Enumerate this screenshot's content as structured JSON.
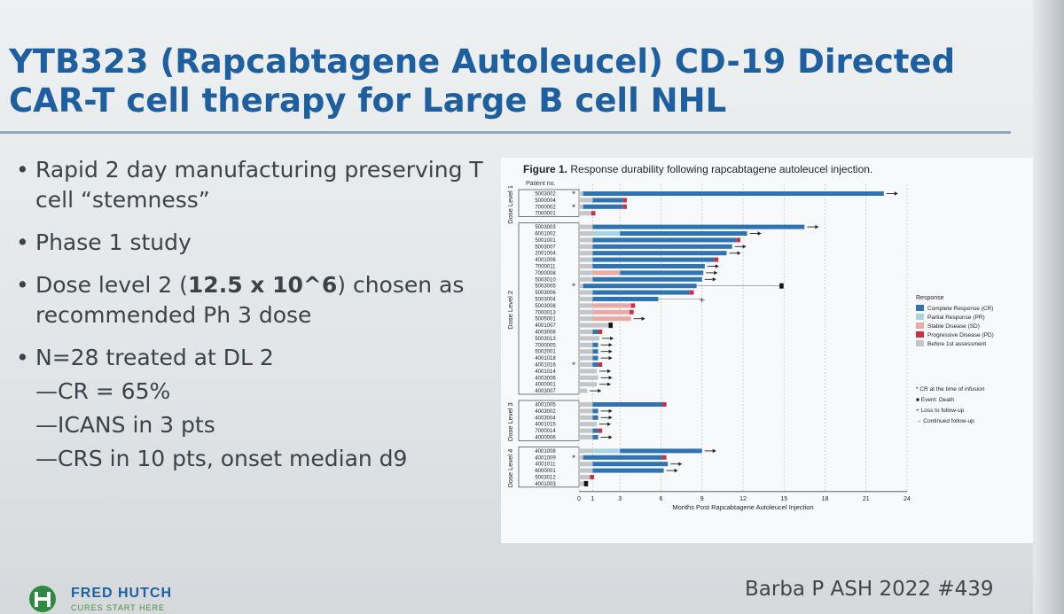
{
  "slide": {
    "title_line1": "YTB323 (Rapcabtagene Autoleucel) CD-19 Directed",
    "title_line2": "CAR-T cell therapy for Large B cell NHL",
    "bullets": [
      {
        "text": "Rapid 2 day manufacturing preserving T cell “stemness”"
      },
      {
        "text": "Phase 1 study"
      },
      {
        "pre": "Dose level 2 (",
        "bold": "12.5 x 10^6",
        "post": ") chosen as recommended Ph 3 dose"
      },
      {
        "text": "N=28 treated at DL 2"
      }
    ],
    "sub_bullets": [
      "—CR = 65%",
      "—ICANS in 3 pts",
      "—CRS in 10 pts, onset median d9"
    ],
    "logo_name": "FRED HUTCH",
    "logo_tagline": "CURES START HERE",
    "citation": "Barba P ASH 2022 #439"
  },
  "chart_data": {
    "type": "bar",
    "caption_bold": "Figure 1.",
    "caption": "Response durability following rapcabtagene autoleucel injection.",
    "patient_header": "Patient no.",
    "xlabel": "Months Post Rapcabtagene Autoleucel Injection",
    "xticks": [
      0,
      1,
      3,
      6,
      9,
      12,
      15,
      18,
      21,
      24
    ],
    "xlim": [
      0,
      24
    ],
    "legend_title": "Response",
    "legend": [
      {
        "name": "Complete Response (CR)",
        "color": "#2f74b0"
      },
      {
        "name": "Partial Response (PR)",
        "color": "#a9d3e2"
      },
      {
        "name": "Stable Disease (SD)",
        "color": "#e9a9a4"
      },
      {
        "name": "Progressive Disease (PD)",
        "color": "#c9314a"
      },
      {
        "name": "Before 1st assessment",
        "color": "#c3c6c9"
      }
    ],
    "symbols": [
      "* CR at the time of infusion",
      "■ Event: Death",
      "+ Loss to follow-up",
      "→ Continued follow-up"
    ],
    "groups": [
      {
        "name": "Dose Level 1",
        "patients": [
          {
            "id": "5003002",
            "star": true,
            "segs": [
              [
                "before",
                0,
                0.3
              ],
              [
                "CR",
                0.3,
                22.3
              ]
            ],
            "arrow": true
          },
          {
            "id": "5000004",
            "segs": [
              [
                "before",
                0,
                1.0
              ],
              [
                "CR",
                1.0,
                3.2
              ],
              [
                "PD",
                3.2,
                3.5
              ]
            ]
          },
          {
            "id": "7000002",
            "star": true,
            "segs": [
              [
                "before",
                0,
                0.3
              ],
              [
                "CR",
                0.3,
                3.2
              ],
              [
                "PD",
                3.2,
                3.5
              ]
            ]
          },
          {
            "id": "7000001",
            "segs": [
              [
                "before",
                0,
                0.9
              ],
              [
                "PD",
                0.9,
                1.2
              ]
            ]
          }
        ]
      },
      {
        "name": "Dose Level 2",
        "patients": [
          {
            "id": "5003003",
            "segs": [
              [
                "before",
                0,
                1.0
              ],
              [
                "CR",
                1.0,
                16.5
              ]
            ],
            "arrow": true
          },
          {
            "id": "6001002",
            "segs": [
              [
                "before",
                0,
                1.0
              ],
              [
                "PR",
                1.0,
                3.0
              ],
              [
                "CR",
                3.0,
                12.3
              ]
            ],
            "arrow": true
          },
          {
            "id": "5001001",
            "segs": [
              [
                "before",
                0,
                1.0
              ],
              [
                "CR",
                1.0,
                11.5
              ],
              [
                "PD",
                11.5,
                11.8
              ]
            ]
          },
          {
            "id": "5003007",
            "segs": [
              [
                "before",
                0,
                1.0
              ],
              [
                "CR",
                1.0,
                11.2
              ]
            ],
            "arrow": true
          },
          {
            "id": "2001004",
            "segs": [
              [
                "before",
                0,
                1.0
              ],
              [
                "CR",
                1.0,
                10.8
              ]
            ],
            "arrow": true
          },
          {
            "id": "4001006",
            "segs": [
              [
                "before",
                0,
                1.0
              ],
              [
                "CR",
                1.0,
                9.9
              ],
              [
                "PD",
                9.9,
                10.2
              ]
            ]
          },
          {
            "id": "7000011",
            "segs": [
              [
                "before",
                0,
                1.0
              ],
              [
                "CR",
                1.0,
                9.2
              ]
            ],
            "arrow": true
          },
          {
            "id": "7000008",
            "segs": [
              [
                "before",
                0,
                1.0
              ],
              [
                "SD",
                1.0,
                3.0
              ],
              [
                "CR",
                3.0,
                9.1
              ]
            ],
            "arrow": true
          },
          {
            "id": "5003010",
            "segs": [
              [
                "before",
                0,
                1.0
              ],
              [
                "CR",
                1.0,
                9.0
              ]
            ],
            "arrow": true
          },
          {
            "id": "5003005",
            "star": true,
            "segs": [
              [
                "before",
                0,
                0.3
              ],
              [
                "CR",
                0.3,
                8.6
              ]
            ],
            "line_to": 14.8,
            "death": 14.8
          },
          {
            "id": "5003006",
            "segs": [
              [
                "before",
                0,
                1.0
              ],
              [
                "CR",
                1.0,
                8.1
              ],
              [
                "PD",
                8.1,
                8.4
              ]
            ]
          },
          {
            "id": "5003004",
            "segs": [
              [
                "before",
                0,
                1.0
              ],
              [
                "CR",
                1.0,
                5.8
              ]
            ],
            "line_to": 9.0,
            "loss": 9.0
          },
          {
            "id": "5003008",
            "segs": [
              [
                "before",
                0,
                1.0
              ],
              [
                "SD",
                1.0,
                3.8
              ],
              [
                "PD",
                3.8,
                4.1
              ]
            ]
          },
          {
            "id": "7000013",
            "segs": [
              [
                "before",
                0,
                1.0
              ],
              [
                "SD",
                1.0,
                3.7
              ],
              [
                "PD",
                3.7,
                4.0
              ]
            ]
          },
          {
            "id": "5005001",
            "segs": [
              [
                "before",
                0,
                1.0
              ],
              [
                "SD",
                1.0,
                3.8
              ]
            ],
            "arrow": true
          },
          {
            "id": "4001007",
            "segs": [
              [
                "before",
                0,
                2.2
              ]
            ],
            "death": 2.3
          },
          {
            "id": "4003008",
            "segs": [
              [
                "before",
                0,
                1.0
              ],
              [
                "CR",
                1.0,
                1.4
              ],
              [
                "PD",
                1.4,
                1.7
              ]
            ]
          },
          {
            "id": "5003013",
            "segs": [
              [
                "before",
                0,
                1.5
              ]
            ],
            "arrow": true
          },
          {
            "id": "7000005",
            "segs": [
              [
                "before",
                0,
                1.0
              ],
              [
                "CR",
                1.0,
                1.4
              ]
            ],
            "arrow": true
          },
          {
            "id": "5002001",
            "segs": [
              [
                "before",
                0,
                1.0
              ],
              [
                "CR",
                1.0,
                1.4
              ]
            ],
            "arrow": true
          },
          {
            "id": "4001018",
            "segs": [
              [
                "before",
                0,
                1.0
              ],
              [
                "CR",
                1.0,
                1.4
              ]
            ],
            "arrow": true
          },
          {
            "id": "4001016",
            "star": true,
            "segs": [
              [
                "before",
                0,
                1.0
              ],
              [
                "CR",
                1.0,
                1.4
              ],
              [
                "PD",
                1.4,
                1.7
              ]
            ]
          },
          {
            "id": "4001014",
            "segs": [
              [
                "before",
                0,
                1.3
              ]
            ],
            "arrow": true
          },
          {
            "id": "4003006",
            "segs": [
              [
                "before",
                0,
                1.4
              ]
            ],
            "arrow": true
          },
          {
            "id": "4000001",
            "segs": [
              [
                "before",
                0,
                1.3
              ]
            ],
            "arrow": true
          },
          {
            "id": "4003007",
            "segs": [
              [
                "before",
                0,
                0.6
              ]
            ],
            "arrow": true
          }
        ]
      },
      {
        "name": "Dose Level 3",
        "patients": [
          {
            "id": "4001005",
            "segs": [
              [
                "before",
                0,
                1.0
              ],
              [
                "CR",
                1.0,
                6.1
              ],
              [
                "PD",
                6.1,
                6.4
              ]
            ]
          },
          {
            "id": "4003002",
            "segs": [
              [
                "before",
                0,
                1.0
              ],
              [
                "CR",
                1.0,
                1.4
              ]
            ],
            "arrow": true
          },
          {
            "id": "4003004",
            "segs": [
              [
                "before",
                0,
                1.0
              ],
              [
                "CR",
                1.0,
                1.4
              ]
            ],
            "arrow": true
          },
          {
            "id": "4001015",
            "segs": [
              [
                "before",
                0,
                1.3
              ]
            ],
            "arrow": true
          },
          {
            "id": "7000014",
            "segs": [
              [
                "before",
                0,
                1.0
              ],
              [
                "CR",
                1.0,
                1.4
              ],
              [
                "PD",
                1.4,
                1.7
              ]
            ]
          },
          {
            "id": "4000006",
            "segs": [
              [
                "before",
                0,
                1.0
              ],
              [
                "CR",
                1.0,
                1.4
              ]
            ],
            "arrow": true
          }
        ]
      },
      {
        "name": "Dose Level 4",
        "patients": [
          {
            "id": "4001008",
            "segs": [
              [
                "before",
                0,
                1.0
              ],
              [
                "PR",
                1.0,
                3.0
              ],
              [
                "CR",
                3.0,
                9.0
              ]
            ],
            "arrow": true
          },
          {
            "id": "4001009",
            "star": true,
            "segs": [
              [
                "before",
                0,
                0.3
              ],
              [
                "CR",
                0.3,
                6.1
              ],
              [
                "PD",
                6.1,
                6.4
              ]
            ]
          },
          {
            "id": "4001011",
            "segs": [
              [
                "before",
                0,
                1.0
              ],
              [
                "CR",
                1.0,
                6.5
              ]
            ],
            "arrow": true
          },
          {
            "id": "6000001",
            "segs": [
              [
                "before",
                0,
                1.0
              ],
              [
                "CR",
                1.0,
                6.2
              ]
            ],
            "arrow": true
          },
          {
            "id": "5003012",
            "segs": [
              [
                "before",
                0,
                0.8
              ],
              [
                "PD",
                0.8,
                1.1
              ]
            ]
          },
          {
            "id": "4001003",
            "segs": [
              [
                "before",
                0,
                0.4
              ]
            ],
            "death": 0.5
          }
        ]
      }
    ]
  }
}
